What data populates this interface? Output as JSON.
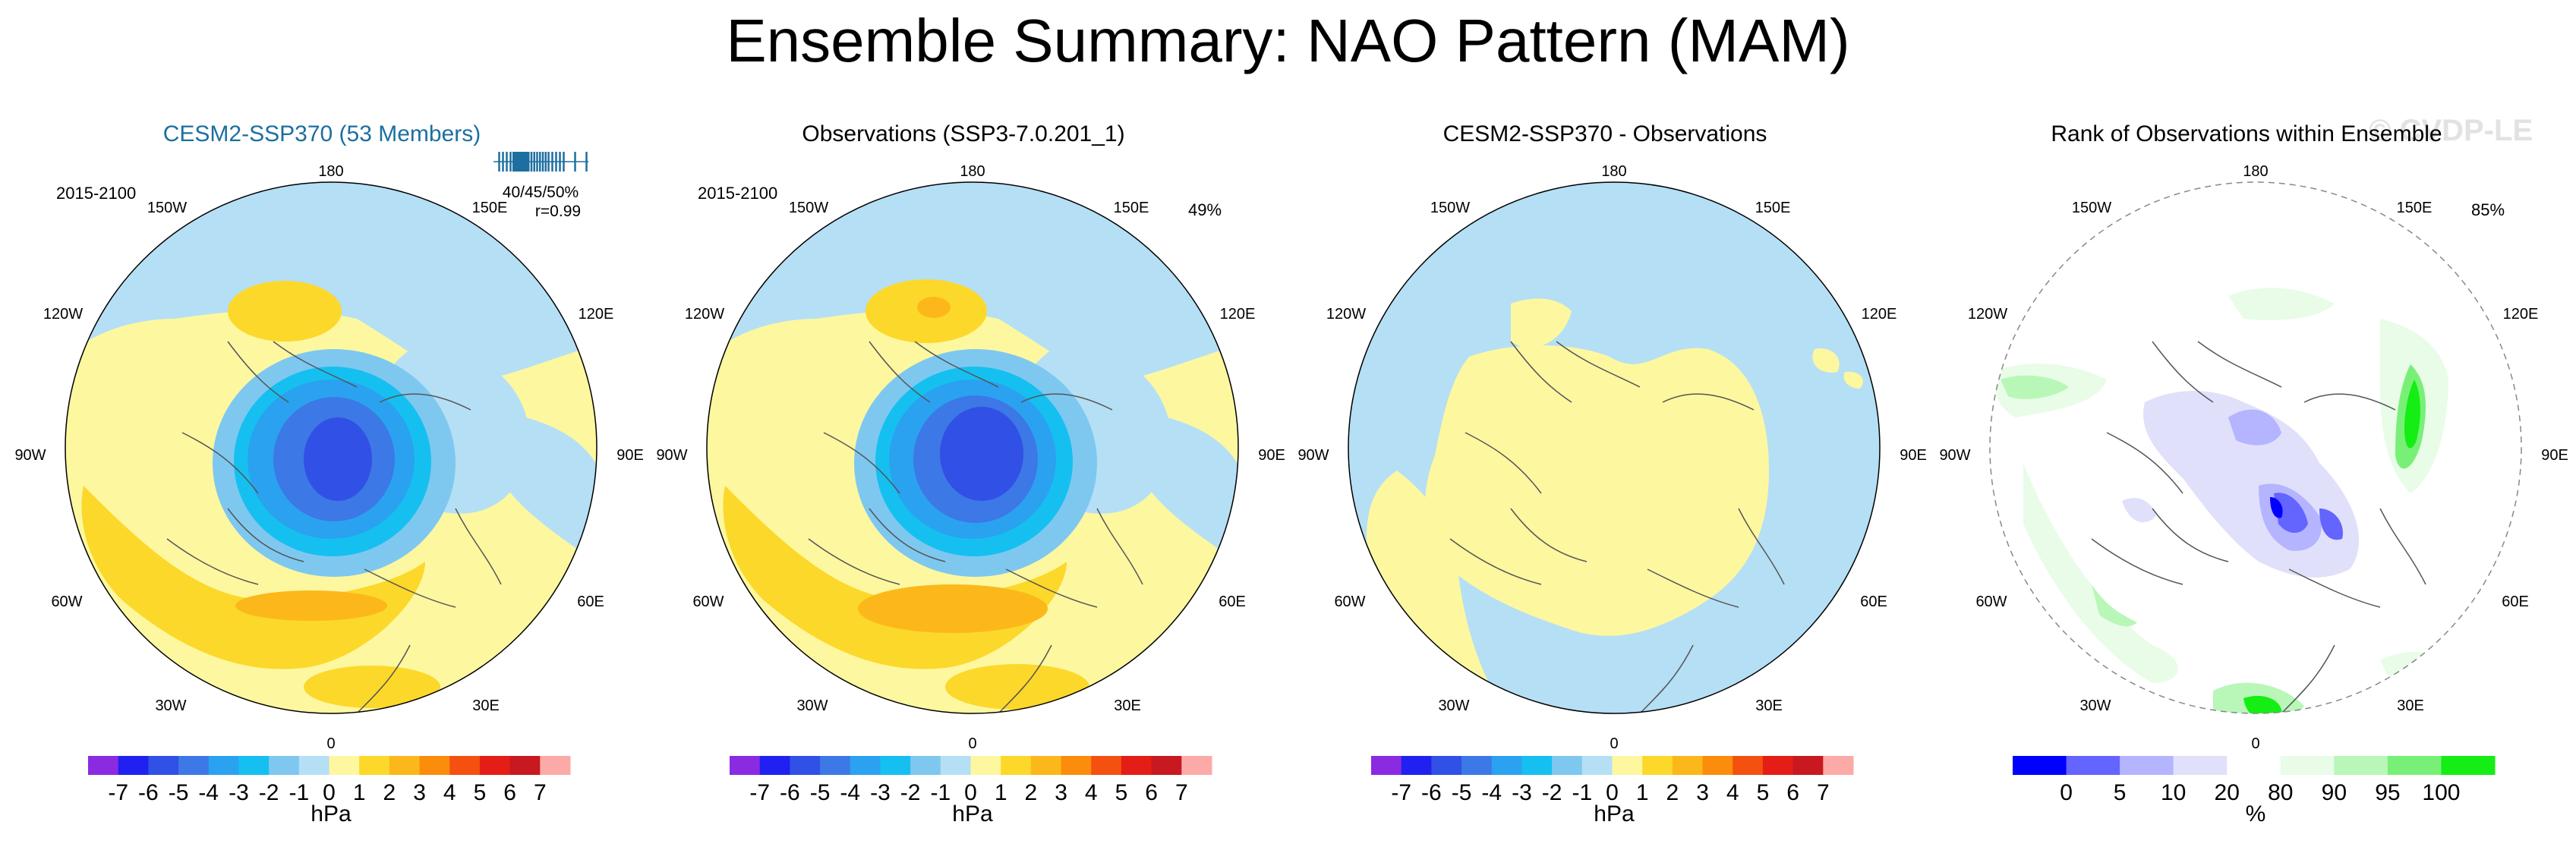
{
  "title": "Ensemble Summary: NAO Pattern (MAM)",
  "watermark": "© CVDP-LE",
  "colors": {
    "title_accent": "#1c6fa0",
    "land_outline": "#555555",
    "neutral_pos": "#fdf7a0",
    "neutral_neg": "#b5dff5"
  },
  "panels": [
    {
      "title": "CESM2-SSP370 (53 Members)",
      "period": "2015-2100",
      "stats": [
        "40/45/50%",
        "r=0.99"
      ],
      "corner_pct": "",
      "type": "field",
      "units": "hPa"
    },
    {
      "title": "Observations (SSP3-7.0.201_1)",
      "period": "2015-2100",
      "stats": [],
      "corner_pct": "49%",
      "type": "field",
      "units": "hPa"
    },
    {
      "title": "CESM2-SSP370 - Observations",
      "period": "",
      "stats": [],
      "corner_pct": "",
      "type": "difference",
      "units": "hPa"
    },
    {
      "title": "Rank of Observations within Ensemble",
      "period": "",
      "stats": [],
      "corner_pct": "85%",
      "type": "rank",
      "units": "%"
    }
  ],
  "longitude_labels": [
    "180",
    "150W",
    "150E",
    "120W",
    "120E",
    "90W",
    "90E",
    "60W",
    "60E",
    "30W",
    "30E",
    "0"
  ],
  "chart_data": [
    {
      "type": "heatmap",
      "title": "CESM2-SSP370 (53 Members)",
      "projection": "north polar stereographic",
      "colorbar_ticks": [
        "-7",
        "-6",
        "-5",
        "-4",
        "-3",
        "-2",
        "-1",
        "0",
        "1",
        "2",
        "3",
        "4",
        "5",
        "6",
        "7"
      ],
      "colorbar_colors": [
        "#8a2be2",
        "#2020f0",
        "#3050e6",
        "#3c78e6",
        "#2aa2f0",
        "#15c0f0",
        "#7ec8f0",
        "#b5dff5",
        "#fdf7a0",
        "#fcd82a",
        "#fcb81a",
        "#fc8c0c",
        "#f45010",
        "#e41d17",
        "#c81820",
        "#fcaaa8"
      ],
      "colorbar_label": "hPa",
      "pattern": "NAO dipole: negative center ~ -5 hPa near Iceland/Greenland, positive ~ +2 to +3 hPa over N. Atlantic/Europe and N. Pacific",
      "ensemble_spread_ticks": [
        0.06,
        0.1,
        0.14,
        0.18,
        0.21,
        0.23,
        0.25,
        0.27,
        0.29,
        0.31,
        0.33,
        0.35,
        0.37,
        0.4,
        0.43,
        0.46,
        0.49,
        0.52,
        0.55,
        0.58,
        0.62,
        0.66,
        0.7,
        0.74,
        0.86,
        0.98
      ],
      "stats": [
        "40/45/50%",
        "r=0.99"
      ]
    },
    {
      "type": "heatmap",
      "title": "Observations (SSP3-7.0.201_1)",
      "projection": "north polar stereographic",
      "colorbar_ticks": [
        "-7",
        "-6",
        "-5",
        "-4",
        "-3",
        "-2",
        "-1",
        "0",
        "1",
        "2",
        "3",
        "4",
        "5",
        "6",
        "7"
      ],
      "colorbar_label": "hPa",
      "explained_variance": "49%"
    },
    {
      "type": "heatmap",
      "title": "CESM2-SSP370 - Observations",
      "projection": "north polar stereographic",
      "colorbar_ticks": [
        "-7",
        "-6",
        "-5",
        "-4",
        "-3",
        "-2",
        "-1",
        "0",
        "1",
        "2",
        "3",
        "4",
        "5",
        "6",
        "7"
      ],
      "colorbar_label": "hPa",
      "pattern": "differences within -1 to +1 hPa everywhere"
    },
    {
      "type": "heatmap",
      "title": "Rank of Observations within Ensemble",
      "projection": "north polar stereographic",
      "colorbar_ticks": [
        "0",
        "5",
        "10",
        "20",
        "80",
        "90",
        "95",
        "100"
      ],
      "colorbar_colors": [
        "#0000ff",
        "#6464ff",
        "#b4b4ff",
        "#e0e0fb",
        "#ffffff",
        "#e8fce8",
        "#b8f7b8",
        "#78f078",
        "#14ee14"
      ],
      "colorbar_label": "%",
      "pct_within_10_90": "85%"
    }
  ]
}
